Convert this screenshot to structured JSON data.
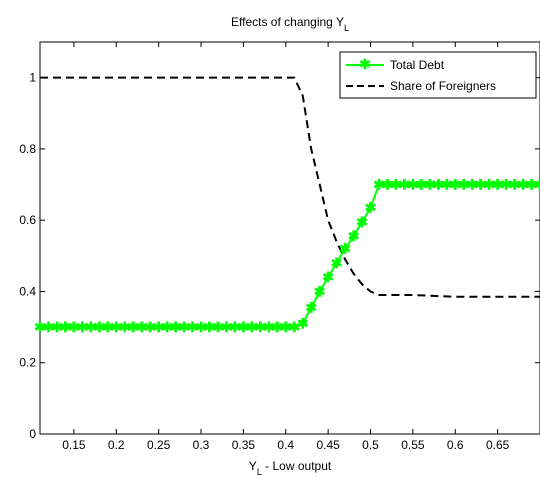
{
  "chart_data": {
    "type": "line",
    "title": "Effects of changing Y",
    "title_sub": "L",
    "xlabel": "Y",
    "xlabel_sub": "L",
    "xlabel_rest": " - Low output",
    "xlim": [
      0.11,
      0.7
    ],
    "ylim": [
      0,
      1.1
    ],
    "xticks": [
      0.15,
      0.2,
      0.25,
      0.3,
      0.35,
      0.4,
      0.45,
      0.5,
      0.55,
      0.6,
      0.65
    ],
    "xtick_labels": [
      "0.15",
      "0.2",
      "0.25",
      "0.3",
      "0.35",
      "0.4",
      "0.45",
      "0.5",
      "0.55",
      "0.6",
      "0.65"
    ],
    "yticks": [
      0,
      0.2,
      0.4,
      0.6,
      0.8,
      1
    ],
    "ytick_labels": [
      "0",
      "0.2",
      "0.4",
      "0.6",
      "0.8",
      "1"
    ],
    "grid": false,
    "legend_position": "top-right",
    "series": [
      {
        "name": "Total Debt",
        "color": "#00ff00",
        "style": "solid-star",
        "x": [
          0.11,
          0.12,
          0.13,
          0.14,
          0.15,
          0.16,
          0.17,
          0.18,
          0.19,
          0.2,
          0.21,
          0.22,
          0.23,
          0.24,
          0.25,
          0.26,
          0.27,
          0.28,
          0.29,
          0.3,
          0.31,
          0.32,
          0.33,
          0.34,
          0.35,
          0.36,
          0.37,
          0.38,
          0.39,
          0.4,
          0.41,
          0.42,
          0.43,
          0.44,
          0.45,
          0.46,
          0.47,
          0.48,
          0.49,
          0.5,
          0.51,
          0.52,
          0.53,
          0.54,
          0.55,
          0.56,
          0.57,
          0.58,
          0.59,
          0.6,
          0.61,
          0.62,
          0.63,
          0.64,
          0.65,
          0.66,
          0.67,
          0.68,
          0.69,
          0.7
        ],
        "y": [
          0.3,
          0.3,
          0.3,
          0.3,
          0.3,
          0.3,
          0.3,
          0.3,
          0.3,
          0.3,
          0.3,
          0.3,
          0.3,
          0.3,
          0.3,
          0.3,
          0.3,
          0.3,
          0.3,
          0.3,
          0.3,
          0.3,
          0.3,
          0.3,
          0.3,
          0.3,
          0.3,
          0.3,
          0.3,
          0.3,
          0.3,
          0.31,
          0.355,
          0.4,
          0.44,
          0.48,
          0.52,
          0.555,
          0.595,
          0.635,
          0.7,
          0.7,
          0.7,
          0.7,
          0.7,
          0.7,
          0.7,
          0.7,
          0.7,
          0.7,
          0.7,
          0.7,
          0.7,
          0.7,
          0.7,
          0.7,
          0.7,
          0.7,
          0.7,
          0.7
        ]
      },
      {
        "name": "Share of Foreigners",
        "color": "#000000",
        "style": "dashed",
        "x": [
          0.11,
          0.2,
          0.3,
          0.4,
          0.41,
          0.42,
          0.43,
          0.44,
          0.45,
          0.46,
          0.47,
          0.48,
          0.49,
          0.5,
          0.51,
          0.52,
          0.55,
          0.6,
          0.65,
          0.7
        ],
        "y": [
          1.0,
          1.0,
          1.0,
          1.0,
          1.0,
          0.95,
          0.8,
          0.7,
          0.6,
          0.54,
          0.49,
          0.45,
          0.42,
          0.4,
          0.39,
          0.39,
          0.39,
          0.385,
          0.385,
          0.385
        ]
      }
    ]
  }
}
